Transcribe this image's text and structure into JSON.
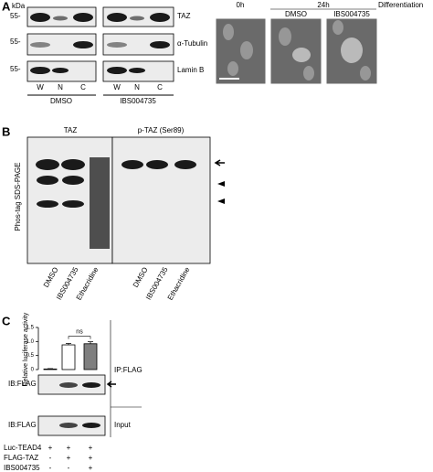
{
  "panel_a": {
    "letter": "A",
    "kda": "kDa",
    "markers": [
      "55-",
      "55-",
      "55-"
    ],
    "blots": [
      "TAZ",
      "α-Tubulin",
      "Lamin B"
    ],
    "lanes": [
      "W",
      "N",
      "C",
      "W",
      "N",
      "C"
    ],
    "groups": [
      "DMSO",
      "IBS004735"
    ],
    "images": {
      "time0": "0h",
      "time24": "24h",
      "process": "Differentiation",
      "cols": [
        "DMSO",
        "IBS004735"
      ]
    }
  },
  "panel_b": {
    "letter": "B",
    "axis_label": "Phos-tag SDS-PAGE",
    "blots": [
      "TAZ",
      "p-TAZ (Ser89)"
    ],
    "lanes": [
      "DMSO",
      "IBS004735",
      "Ethacridine",
      "DMSO",
      "IBS004735",
      "Ethacridine"
    ]
  },
  "panel_c": {
    "letter": "C",
    "chart": {
      "type": "bar",
      "y_label": "Relative luciferase activity",
      "values": [
        0.02,
        0.88,
        0.92
      ],
      "errors": [
        0.01,
        0.05,
        0.07
      ],
      "colors": [
        "#ffffff",
        "#ffffff",
        "#7f7f7f"
      ],
      "ylim": [
        0,
        1.5
      ],
      "yticks": [
        0,
        {
          "value": 0.5,
          "label": "0.5"
        },
        {
          "value": 1,
          "label": "1.0"
        },
        1.5
      ],
      "annotation": "ns"
    },
    "ip": "IP:FLAG",
    "ib": [
      "IB:FLAG",
      "IB:FLAG"
    ],
    "input": "Input",
    "conditions": [
      {
        "name": "Luc-TEAD4",
        "signs": [
          "+",
          "+",
          "+"
        ]
      },
      {
        "name": "FLAG-TAZ",
        "signs": [
          "-",
          "+",
          "+"
        ]
      },
      {
        "name": "IBS004735",
        "signs": [
          "-",
          "-",
          "+"
        ]
      }
    ]
  }
}
